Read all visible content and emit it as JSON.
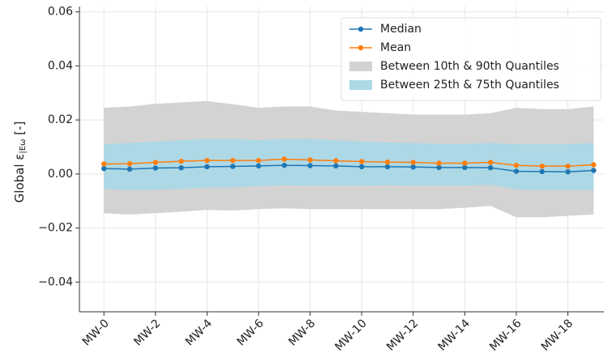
{
  "chart_data": {
    "type": "line",
    "ylabel": {
      "main": "Global ε",
      "sub": "|Eω",
      "unit": " [-]"
    },
    "categories": [
      "MW-0",
      null,
      "MW-2",
      null,
      "MW-4",
      null,
      "MW-6",
      null,
      "MW-8",
      null,
      "MW-10",
      null,
      "MW-12",
      null,
      "MW-14",
      null,
      "MW-16",
      null,
      "MW-18",
      null
    ],
    "series": [
      {
        "name": "Median",
        "color": "#1f77b4",
        "values": [
          0.002,
          0.0018,
          0.0022,
          0.0023,
          0.0027,
          0.0028,
          0.003,
          0.0032,
          0.0031,
          0.003,
          0.0027,
          0.0027,
          0.0026,
          0.0024,
          0.0024,
          0.0023,
          0.001,
          0.0009,
          0.0008,
          0.0013
        ]
      },
      {
        "name": "Mean",
        "color": "#ff7f0e",
        "values": [
          0.0037,
          0.0038,
          0.0043,
          0.0047,
          0.005,
          0.005,
          0.005,
          0.0055,
          0.0052,
          0.0049,
          0.0046,
          0.0044,
          0.0043,
          0.004,
          0.004,
          0.0043,
          0.0032,
          0.0029,
          0.0029,
          0.0034
        ]
      }
    ],
    "bands": [
      {
        "name": "Between 10th & 90th Quantiles",
        "color": "#d3d3d3",
        "lower": [
          -0.0145,
          -0.015,
          -0.0145,
          -0.014,
          -0.0133,
          -0.0135,
          -0.013,
          -0.0127,
          -0.013,
          -0.013,
          -0.013,
          -0.013,
          -0.013,
          -0.013,
          -0.0125,
          -0.0118,
          -0.016,
          -0.016,
          -0.0155,
          -0.015
        ],
        "upper": [
          0.0245,
          0.025,
          0.026,
          0.0265,
          0.027,
          0.0258,
          0.0245,
          0.025,
          0.025,
          0.0235,
          0.023,
          0.0225,
          0.022,
          0.022,
          0.022,
          0.0225,
          0.0245,
          0.024,
          0.024,
          0.025
        ]
      },
      {
        "name": "Between 25th & 75th Quantiles",
        "color": "#add8e6",
        "lower": [
          -0.0055,
          -0.006,
          -0.0058,
          -0.0055,
          -0.005,
          -0.005,
          -0.0045,
          -0.0042,
          -0.0043,
          -0.0043,
          -0.0043,
          -0.0042,
          -0.0043,
          -0.0043,
          -0.0043,
          -0.004,
          -0.0057,
          -0.006,
          -0.006,
          -0.006
        ],
        "upper": [
          0.011,
          0.0115,
          0.012,
          0.0125,
          0.013,
          0.013,
          0.0125,
          0.013,
          0.013,
          0.0125,
          0.012,
          0.0117,
          0.0115,
          0.0112,
          0.0112,
          0.0115,
          0.011,
          0.011,
          0.011,
          0.0115
        ]
      }
    ],
    "ylim": [
      -0.051,
      0.062
    ],
    "yticks": [
      {
        "value": -0.04,
        "label": "−0.04"
      },
      {
        "value": -0.02,
        "label": "−0.02"
      },
      {
        "value": 0,
        "label": "0.00"
      },
      0.02,
      0.04,
      0.06
    ],
    "grid": true,
    "legend": "upper right"
  }
}
